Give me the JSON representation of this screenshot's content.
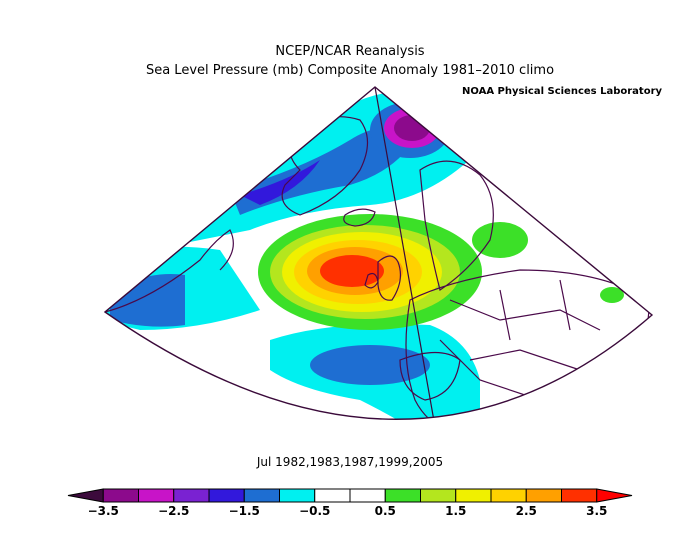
{
  "title": "NCEP/NCAR Reanalysis",
  "subtitle": "Sea Level Pressure (mb) Composite Anomaly 1981–2010 climo",
  "credit": "NOAA Physical Sciences Laboratory",
  "period": "Jul 1982,1983,1987,1999,2005",
  "colors": {
    "land_border": "#4a0a4a",
    "frame": "#3a0a3a"
  },
  "colorbar": {
    "levels": [
      -3.5,
      -3,
      -2.5,
      -2,
      -1.5,
      -1,
      -0.5,
      0,
      0.5,
      1,
      1.5,
      2,
      2.5,
      3,
      3.5
    ],
    "tick_labels": [
      "-3.5",
      "-2.5",
      "-1.5",
      "-0.5",
      "0.5",
      "1.5",
      "2.5",
      "3.5"
    ],
    "colors": [
      "#3c0a3c",
      "#8c0a8c",
      "#c814c8",
      "#7a22d2",
      "#3218dc",
      "#1e6ed2",
      "#00f0f0",
      "#ffffff",
      "#ffffff",
      "#3ce028",
      "#b4e61e",
      "#f0f000",
      "#ffd200",
      "#ffa000",
      "#ff3000",
      "#ff0000"
    ]
  }
}
